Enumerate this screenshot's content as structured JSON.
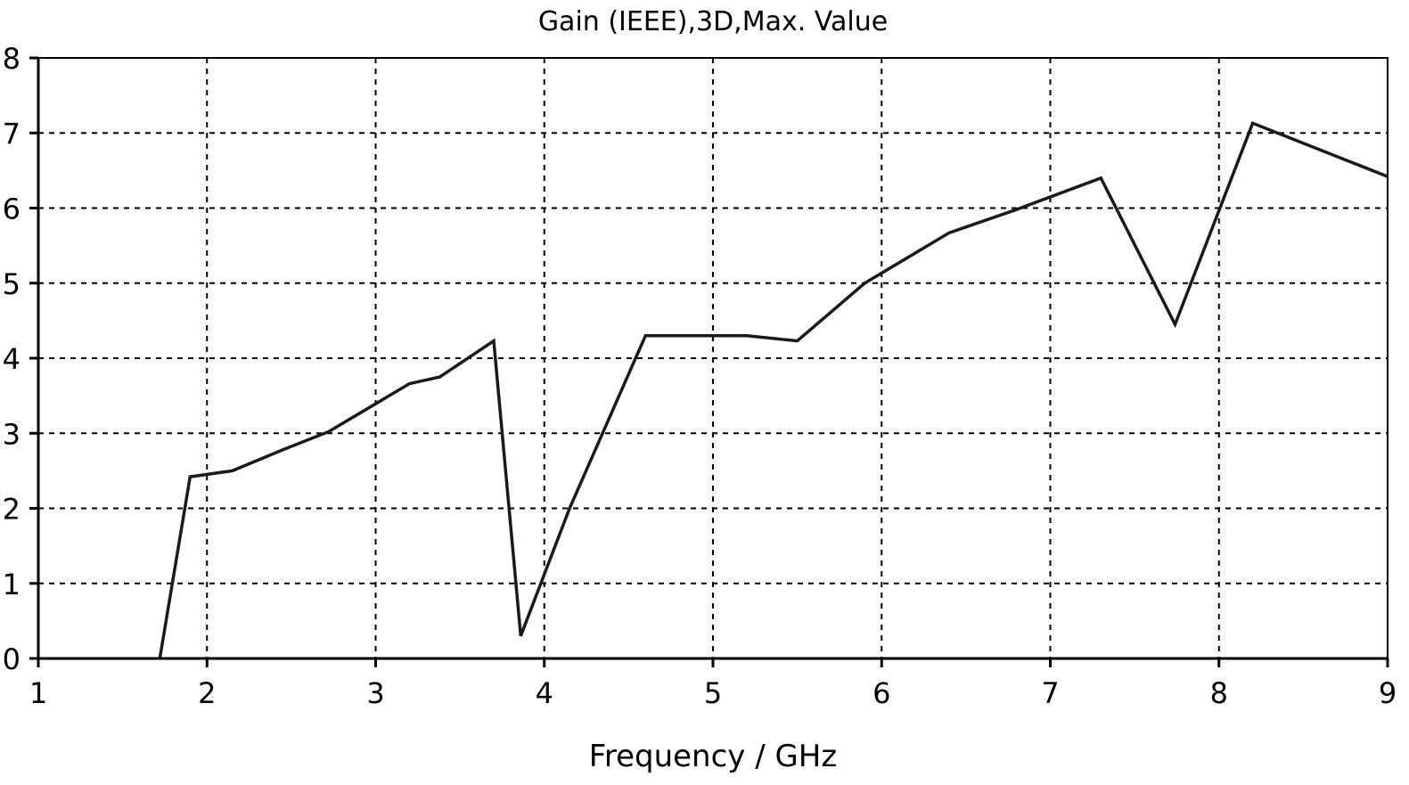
{
  "chart_data": {
    "type": "line",
    "title": "Gain (IEEE),3D,Max. Value",
    "xlabel": "Frequency / GHz",
    "ylabel": "",
    "xlim": [
      1,
      9
    ],
    "ylim": [
      0,
      8
    ],
    "x_ticks": [
      1,
      2,
      3,
      4,
      5,
      6,
      7,
      8,
      9
    ],
    "y_ticks": [
      0,
      1,
      2,
      3,
      4,
      5,
      6,
      7,
      8
    ],
    "grid": true,
    "legend": "none",
    "series": [
      {
        "color": "#1a1a1a",
        "x": [
          1.72,
          1.9,
          2.15,
          2.45,
          2.72,
          3.2,
          3.38,
          3.7,
          3.86,
          4.15,
          4.6,
          5.2,
          5.5,
          5.9,
          6.4,
          6.8,
          7.3,
          7.74,
          8.2,
          9.0
        ],
        "y": [
          0.0,
          2.42,
          2.5,
          2.78,
          3.02,
          3.66,
          3.75,
          4.23,
          0.3,
          2.0,
          4.3,
          4.3,
          4.23,
          5.0,
          5.67,
          5.98,
          6.4,
          4.45,
          7.13,
          6.42
        ]
      }
    ]
  }
}
